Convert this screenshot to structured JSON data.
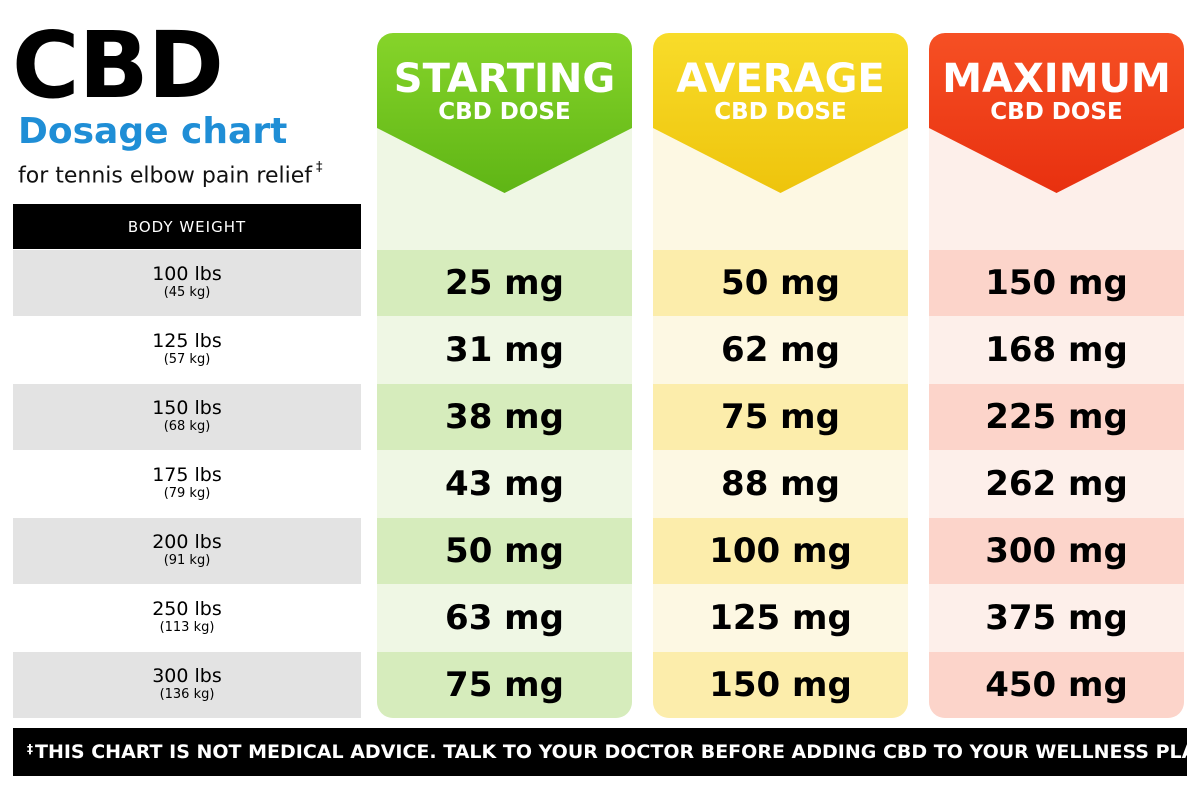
{
  "title": {
    "main": "CBD",
    "sub": "Dosage chart",
    "desc": "for tennis elbow pain relief",
    "desc_mark": "‡"
  },
  "weight_header": "BODY WEIGHT",
  "columns": [
    {
      "id": "starting",
      "big": "STARTING",
      "small": "CBD DOSE",
      "color": "#6cc51a"
    },
    {
      "id": "average",
      "big": "AVERAGE",
      "small": "CBD DOSE",
      "color": "#f3d014"
    },
    {
      "id": "maximum",
      "big": "MAXIMUM",
      "small": "CBD DOSE",
      "color": "#f23c18"
    }
  ],
  "rows": [
    {
      "lbs": "100 lbs",
      "kg": "(45 kg)",
      "starting": "25 mg",
      "average": "50 mg",
      "maximum": "150 mg"
    },
    {
      "lbs": "125 lbs",
      "kg": "(57 kg)",
      "starting": "31 mg",
      "average": "62 mg",
      "maximum": "168 mg"
    },
    {
      "lbs": "150 lbs",
      "kg": "(68 kg)",
      "starting": "38 mg",
      "average": "75 mg",
      "maximum": "225 mg"
    },
    {
      "lbs": "175 lbs",
      "kg": "(79 kg)",
      "starting": "43 mg",
      "average": "88 mg",
      "maximum": "262 mg"
    },
    {
      "lbs": "200 lbs",
      "kg": "(91 kg)",
      "starting": "50 mg",
      "average": "100 mg",
      "maximum": "300 mg"
    },
    {
      "lbs": "250 lbs",
      "kg": "(113 kg)",
      "starting": "63 mg",
      "average": "125 mg",
      "maximum": "375 mg"
    },
    {
      "lbs": "300 lbs",
      "kg": "(136 kg)",
      "starting": "75 mg",
      "average": "150 mg",
      "maximum": "450 mg"
    }
  ],
  "footer": {
    "mark": "‡",
    "text": "THIS CHART IS NOT MEDICAL ADVICE. TALK TO YOUR DOCTOR BEFORE ADDING CBD TO YOUR WELLNESS PLAN"
  }
}
